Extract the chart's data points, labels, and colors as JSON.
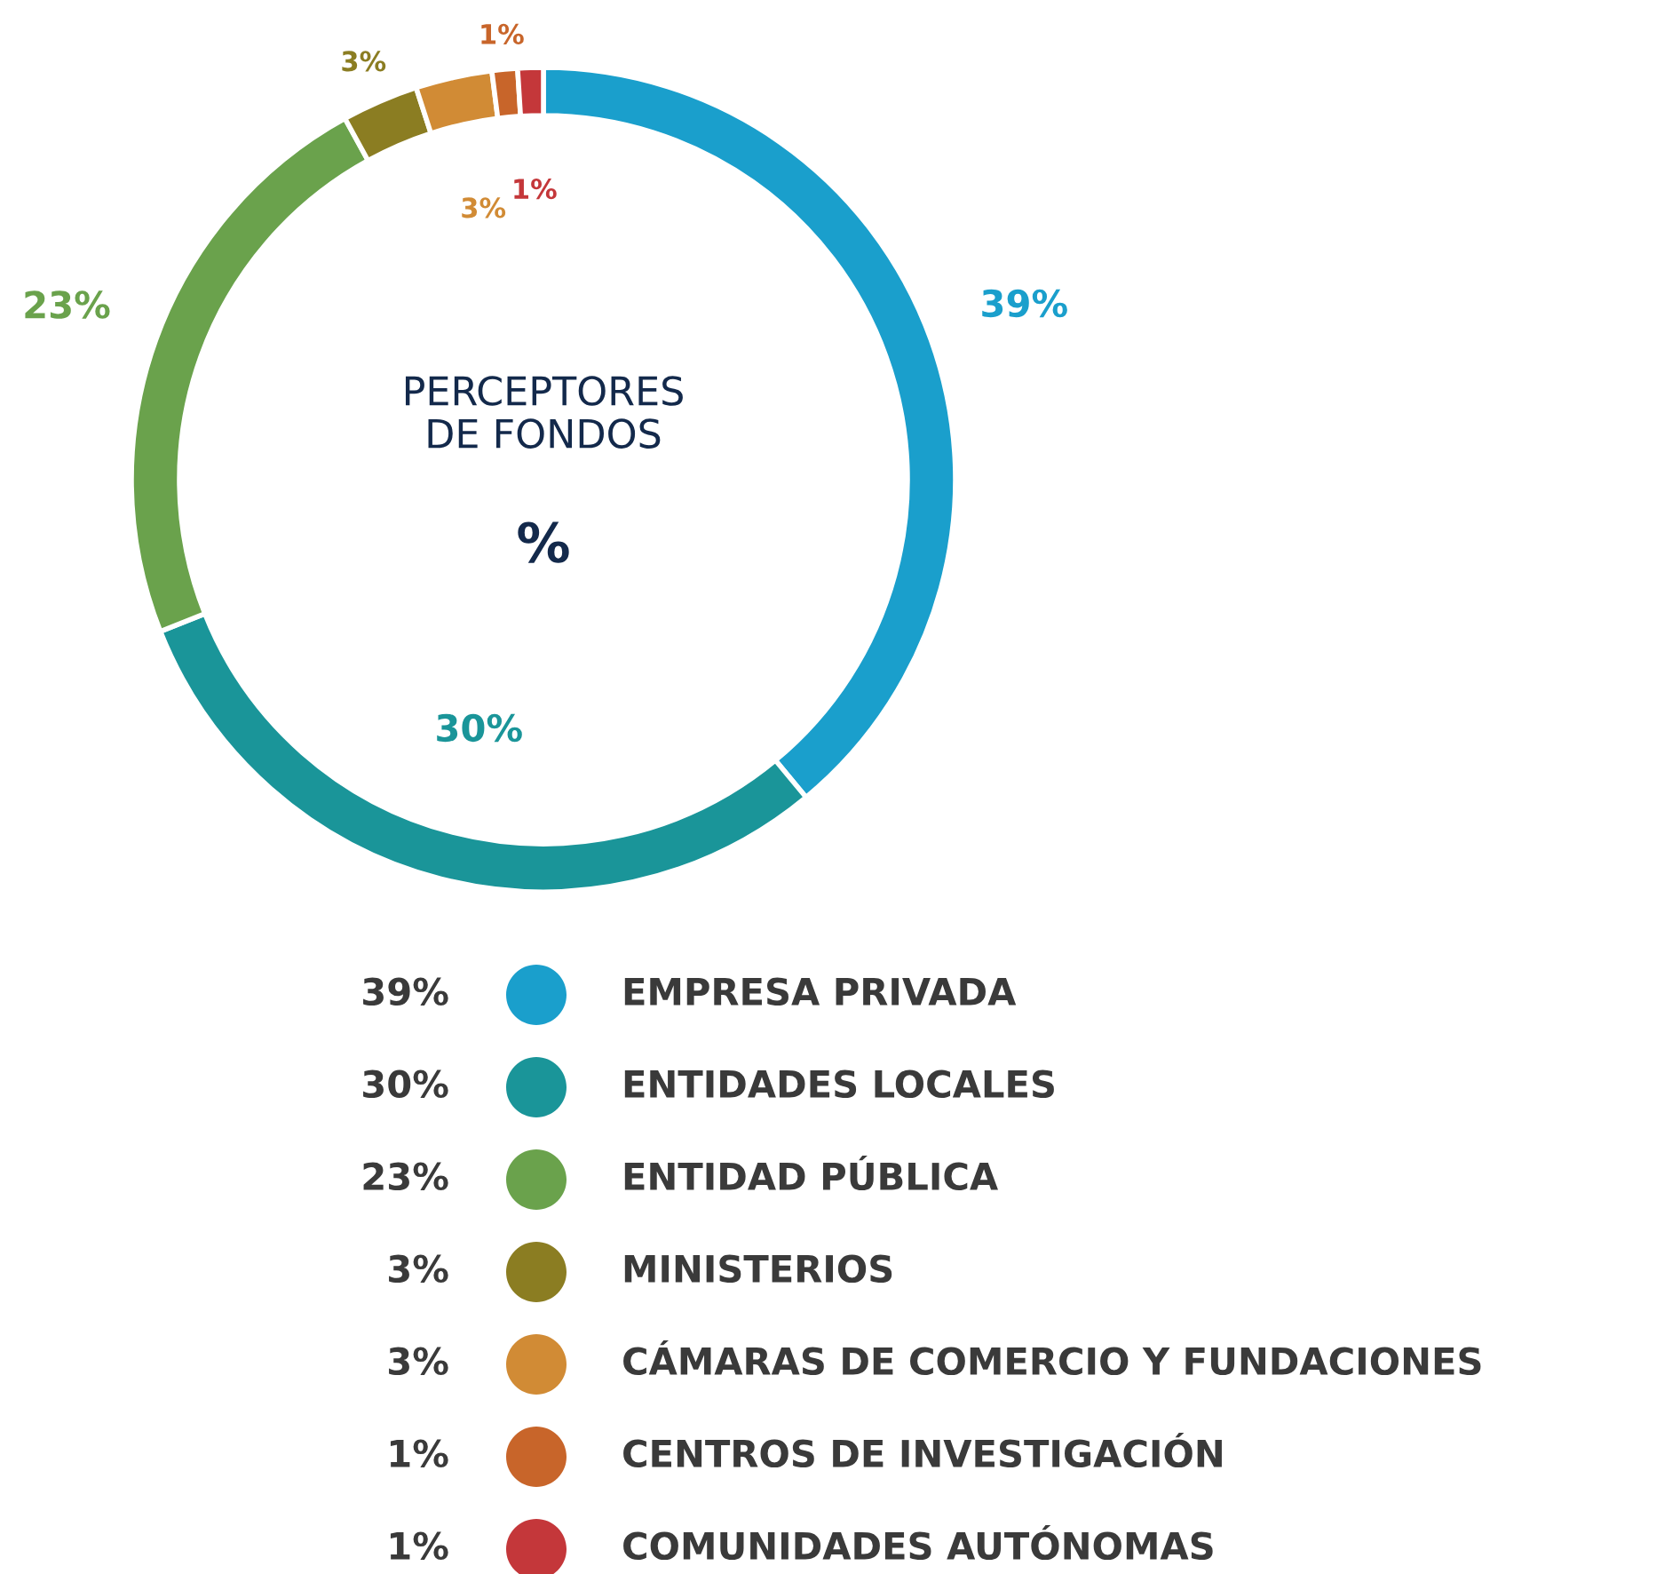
{
  "chart_data": {
    "type": "donut",
    "title": "PERCEPTORES\nDE FONDOS",
    "subtitle": "%",
    "categories": [
      "EMPRESA PRIVADA",
      "ENTIDADES LOCALES",
      "ENTIDAD PÚBLICA",
      "MINISTERIOS",
      "CÁMARAS DE COMERCIO Y FUNDACIONES",
      "CENTROS DE INVESTIGACIÓN",
      "COMUNIDADES AUTÓNOMAS"
    ],
    "values": [
      39,
      30,
      23,
      3,
      3,
      1,
      1
    ],
    "value_labels": [
      "39%",
      "30%",
      "23%",
      "3%",
      "3%",
      "1%",
      "1%"
    ],
    "colors": [
      "#1a9fcc",
      "#1a9599",
      "#6aa24c",
      "#8b7d22",
      "#d18b35",
      "#c8652a",
      "#c4373a"
    ],
    "legend": "bottom"
  }
}
